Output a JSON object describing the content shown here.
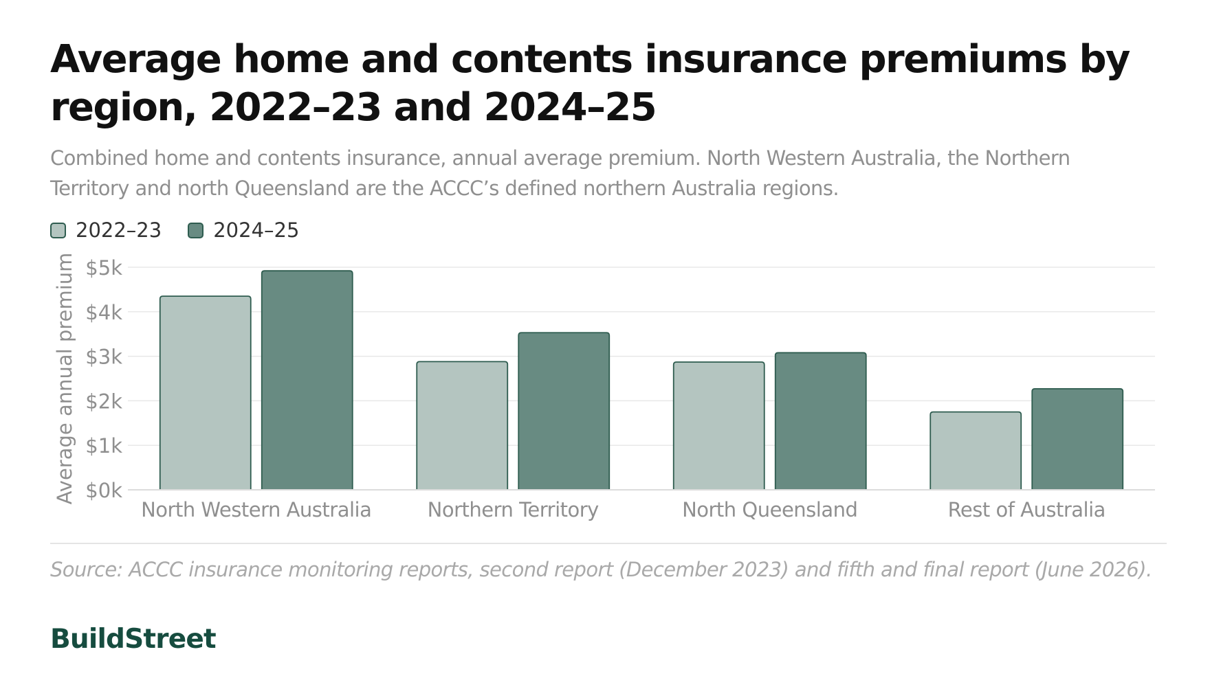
{
  "title": "Average home and contents insurance premiums by region, 2022–23 and 2024–25",
  "subtitle": "Combined home and contents insurance, annual average premium. North Western Australia, the Northern Territory and north Queensland are the ACCC’s defined northern Australia regions.",
  "source": "Source: ACCC insurance monitoring reports, second report (December 2023) and fifth and final report (June 2026).",
  "brand": "BuildStreet",
  "colors": {
    "series_light": "#b4c5c0",
    "series_dark": "#688b82",
    "bar_border": "#2e5c4f",
    "grid": "#e8e8e8",
    "axis_text": "#8f8f8f",
    "brand": "#164c3f"
  },
  "chart_data": {
    "type": "bar",
    "title": "Average home and contents insurance premiums by region, 2022–23 and 2024–25",
    "xlabel": "",
    "ylabel": "Average annual premium",
    "ylim": [
      0,
      5000
    ],
    "y_ticks": [
      0,
      1000,
      2000,
      3000,
      4000,
      5000
    ],
    "y_tick_labels": [
      "$0k",
      "$1k",
      "$2k",
      "$3k",
      "$4k",
      "$5k"
    ],
    "grid": true,
    "legend_position": "top-left",
    "categories": [
      "North Western Australia",
      "Northern Territory",
      "North Queensland",
      "Rest of Australia"
    ],
    "series": [
      {
        "name": "2022–23",
        "values": [
          4350,
          2880,
          2870,
          1750
        ]
      },
      {
        "name": "2024–25",
        "values": [
          4920,
          3530,
          3080,
          2270
        ]
      }
    ]
  }
}
